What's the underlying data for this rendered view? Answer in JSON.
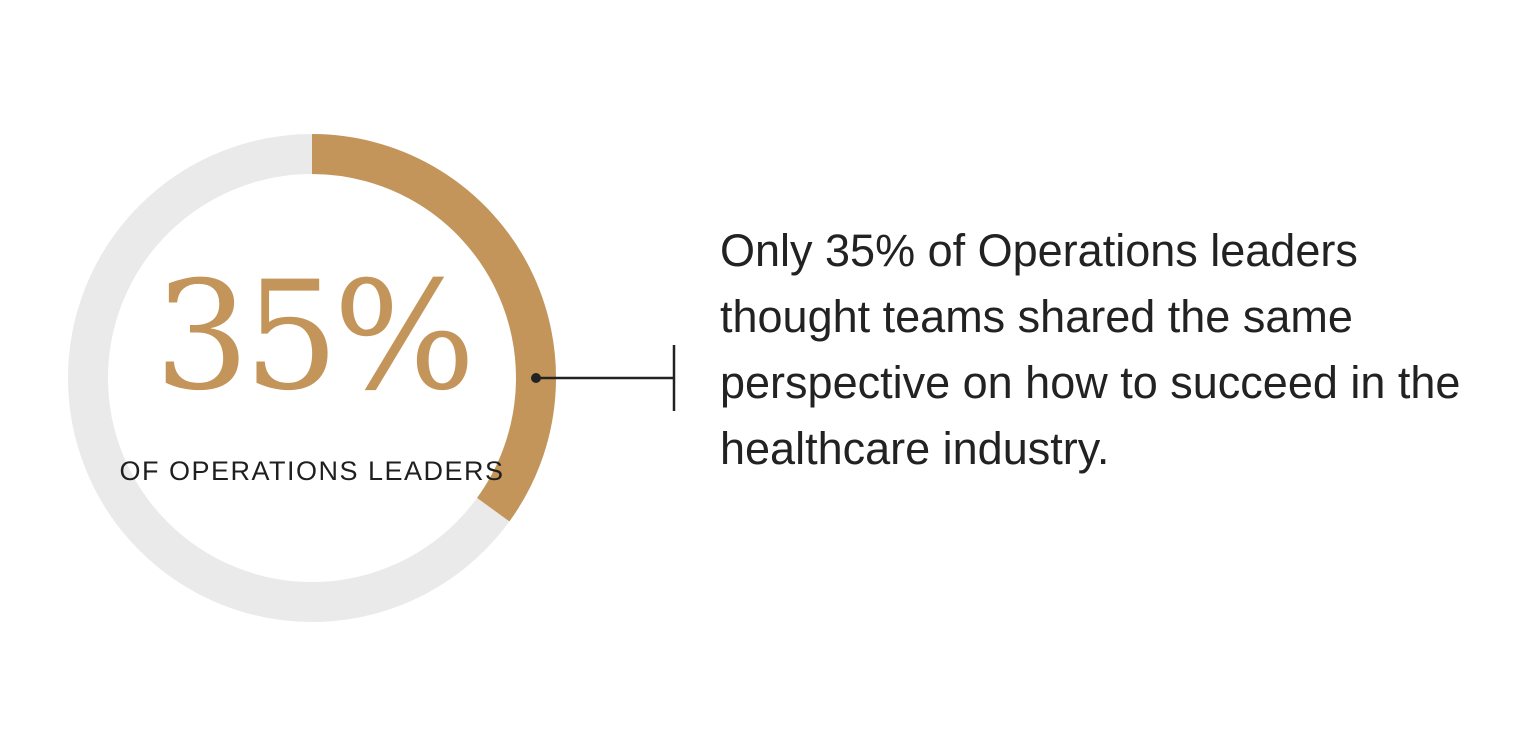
{
  "chart_data": {
    "type": "pie",
    "variant": "donut",
    "values": [
      35,
      65
    ],
    "value_label": "35%",
    "subtitle": "OF OPERATIONS LEADERS",
    "annotation": "Only 35% of Operations leaders thought teams shared the same perspective on how to succeed in the healthcare industry."
  },
  "colors": {
    "highlight": "#C4955A",
    "remainder": "#EAEAEA",
    "text": "#222222",
    "connector": "#222222"
  }
}
